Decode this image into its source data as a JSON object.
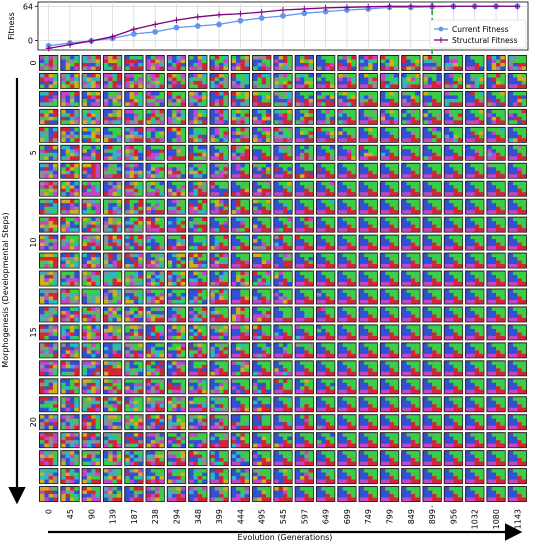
{
  "chart_data": [
    {
      "type": "line",
      "ylabel": "Fitness",
      "yticks": [
        0,
        64
      ],
      "ylim": [
        -18,
        72
      ],
      "x": [
        0,
        45,
        90,
        139,
        187,
        238,
        294,
        348,
        399,
        444,
        495,
        545,
        597,
        649,
        699,
        749,
        799,
        849,
        899,
        956,
        1032,
        1080,
        1143
      ],
      "series": [
        {
          "name": "Current Fitness",
          "color": "#6495ED",
          "marker": "circle",
          "values": [
            -10,
            -5,
            -1,
            4,
            12,
            16,
            24,
            27,
            30,
            37,
            42,
            46,
            51,
            54,
            57,
            59,
            62,
            62,
            63,
            64,
            64,
            64,
            64
          ]
        },
        {
          "name": "Structural Fitness",
          "color": "#800080",
          "marker": "plus",
          "values": [
            -15,
            -8,
            -1,
            7,
            21,
            30,
            38,
            44,
            48,
            50,
            53,
            57,
            59,
            61,
            62,
            63,
            64,
            64,
            64,
            64,
            64,
            64,
            64
          ]
        }
      ],
      "vline": {
        "x": 899,
        "color": "#2ca02c",
        "style": "dashed"
      },
      "legend_position": "lower-right",
      "grid": true
    },
    {
      "type": "heatmap",
      "description_grid": "rows = developmental steps 0-24, columns = generations",
      "xlabel": "Evolution (Generations)",
      "ylabel": "Morphogenesis (Developmental Steps)",
      "x_tick_labels": [
        "0",
        "45",
        "90",
        "139",
        "187",
        "238",
        "294",
        "348",
        "399",
        "444",
        "495",
        "545",
        "597",
        "649",
        "699",
        "749",
        "799",
        "849",
        "899",
        "956",
        "1032",
        "1080",
        "1143"
      ],
      "y_tick_labels": [
        "0",
        "5",
        "10",
        "15",
        "20"
      ],
      "y_tick_rows": [
        0,
        5,
        10,
        15,
        20
      ],
      "rows": 25,
      "cols": 23,
      "grid_on": false
    }
  ],
  "colors": {
    "red": "#e8263a",
    "green": "#3ee04a",
    "blue": "#3554e8",
    "magenta": "#d44bd8",
    "frame": "#222222"
  }
}
